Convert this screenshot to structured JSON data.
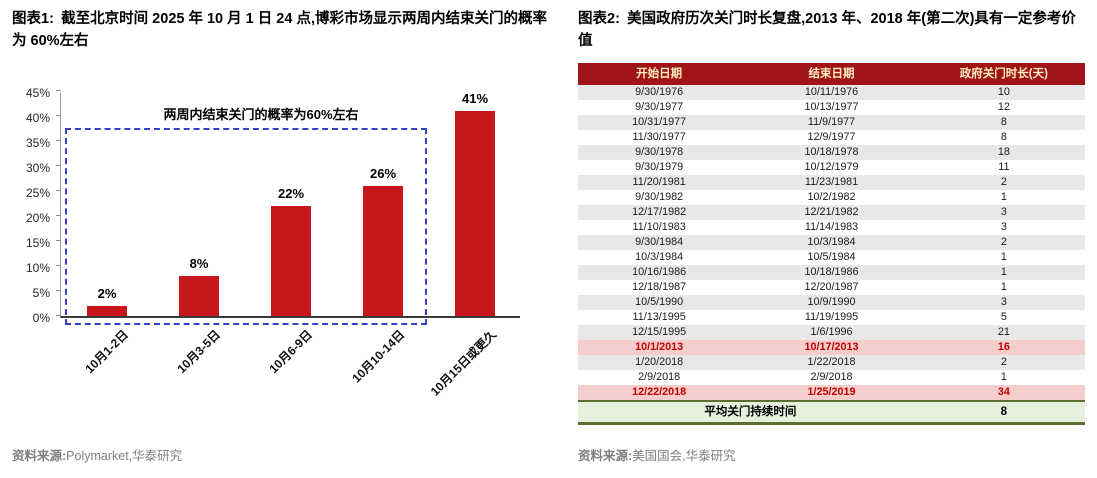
{
  "figure1": {
    "label": "图表1:",
    "title": "截至北京时间 2025 年 10 月 1 日 24 点,博彩市场显示两周内结束关门的概率为 60%左右",
    "source_label": "资料来源:",
    "source": "Polymarket,华泰研究"
  },
  "figure2": {
    "label": "图表2:",
    "title": "美国政府历次关门时长复盘,2013 年、2018 年(第二次)具有一定参考价值",
    "source_label": "资料来源:",
    "source": "美国国会,华泰研究"
  },
  "chart_data": [
    {
      "type": "bar",
      "title": "图表1: 截至北京时间 2025 年 10 月 1 日 24 点,博彩市场显示两周内结束关门的概率为 60%左右",
      "categories": [
        "10月1-2日",
        "10月3-5日",
        "10月6-9日",
        "10月10-14日",
        "10月15日或更久"
      ],
      "values": [
        2,
        8,
        22,
        26,
        41
      ],
      "value_labels": [
        "2%",
        "8%",
        "22%",
        "26%",
        "41%"
      ],
      "ylim": [
        0,
        45
      ],
      "yticks": [
        "0%",
        "5%",
        "10%",
        "15%",
        "20%",
        "25%",
        "30%",
        "35%",
        "40%",
        "45%"
      ],
      "grid": false,
      "legend": false,
      "annotation": "两周内结束关门的概率为60%左右",
      "annotation_box_covers": [
        "10月1-2日",
        "10月3-5日",
        "10月6-9日",
        "10月10-14日"
      ]
    },
    {
      "type": "table",
      "title": "图表2: 美国政府历次关门时长复盘,2013 年、2018 年(第二次)具有一定参考价值",
      "headers": [
        "开始日期",
        "结束日期",
        "政府关门时长(天)"
      ],
      "rows": [
        [
          "9/30/1976",
          "10/11/1976",
          "10"
        ],
        [
          "9/30/1977",
          "10/13/1977",
          "12"
        ],
        [
          "10/31/1977",
          "11/9/1977",
          "8"
        ],
        [
          "11/30/1977",
          "12/9/1977",
          "8"
        ],
        [
          "9/30/1978",
          "10/18/1978",
          "18"
        ],
        [
          "9/30/1979",
          "10/12/1979",
          "11"
        ],
        [
          "11/20/1981",
          "11/23/1981",
          "2"
        ],
        [
          "9/30/1982",
          "10/2/1982",
          "1"
        ],
        [
          "12/17/1982",
          "12/21/1982",
          "3"
        ],
        [
          "11/10/1983",
          "11/14/1983",
          "3"
        ],
        [
          "9/30/1984",
          "10/3/1984",
          "2"
        ],
        [
          "10/3/1984",
          "10/5/1984",
          "1"
        ],
        [
          "10/16/1986",
          "10/18/1986",
          "1"
        ],
        [
          "12/18/1987",
          "12/20/1987",
          "1"
        ],
        [
          "10/5/1990",
          "10/9/1990",
          "3"
        ],
        [
          "11/13/1995",
          "11/19/1995",
          "5"
        ],
        [
          "12/15/1995",
          "1/6/1996",
          "21"
        ],
        [
          "10/1/2013",
          "10/17/2013",
          "16"
        ],
        [
          "1/20/2018",
          "1/22/2018",
          "2"
        ],
        [
          "2/9/2018",
          "2/9/2018",
          "1"
        ],
        [
          "12/22/2018",
          "1/25/2019",
          "34"
        ]
      ],
      "highlighted_rows": [
        17,
        20
      ],
      "footer": {
        "label": "平均关门持续时间",
        "value": "8"
      }
    }
  ],
  "colors": {
    "accent_red": "#C8161D",
    "table_header_bg": "#A01418",
    "table_header_text": "#FFEFC0",
    "stripe_bg": "#E8E8E8",
    "highlight_bg": "#F6CDCD",
    "highlight_text": "#C00000",
    "footer_bg": "#E7F0DD",
    "dashed_box": "#3340C8",
    "source_text": "#7F7F7F"
  }
}
